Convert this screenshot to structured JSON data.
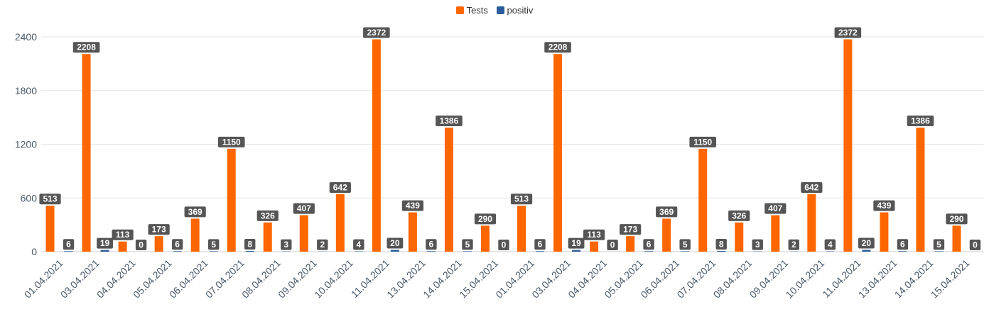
{
  "legend": {
    "tests_label": "Tests",
    "positiv_label": "positiv"
  },
  "colors": {
    "tests": "#ff6600",
    "positiv": "#2a5c9a",
    "label_bg": "#555555",
    "grid": "#e6e6e6"
  },
  "chart_data": {
    "type": "bar",
    "categories": [
      "01.04.2021",
      "03.04.2021",
      "04.04.2021",
      "05.04.2021",
      "06.04.2021",
      "07.04.2021",
      "08.04.2021",
      "09.04.2021",
      "10.04.2021",
      "11.04.2021",
      "13.04.2021",
      "14.04.2021",
      "15.04.2021",
      "01.04.2021",
      "03.04.2021",
      "04.04.2021",
      "05.04.2021",
      "06.04.2021",
      "07.04.2021",
      "08.04.2021",
      "09.04.2021",
      "10.04.2021",
      "11.04.2021",
      "13.04.2021",
      "14.04.2021",
      "15.04.2021"
    ],
    "series": [
      {
        "name": "Tests",
        "values": [
          513,
          2208,
          113,
          173,
          369,
          1150,
          326,
          407,
          642,
          2372,
          439,
          1386,
          290,
          513,
          2208,
          113,
          173,
          369,
          1150,
          326,
          407,
          642,
          2372,
          439,
          1386,
          290
        ]
      },
      {
        "name": "positiv",
        "values": [
          6,
          19,
          0,
          6,
          5,
          8,
          3,
          2,
          4,
          20,
          6,
          5,
          0,
          6,
          19,
          0,
          6,
          5,
          8,
          3,
          2,
          4,
          20,
          6,
          5,
          0
        ]
      }
    ],
    "yticks": [
      0,
      600,
      1200,
      1800,
      2400
    ],
    "ylim": [
      0,
      2400
    ],
    "grid": true,
    "legend_position": "top-center",
    "data_labels": true
  }
}
